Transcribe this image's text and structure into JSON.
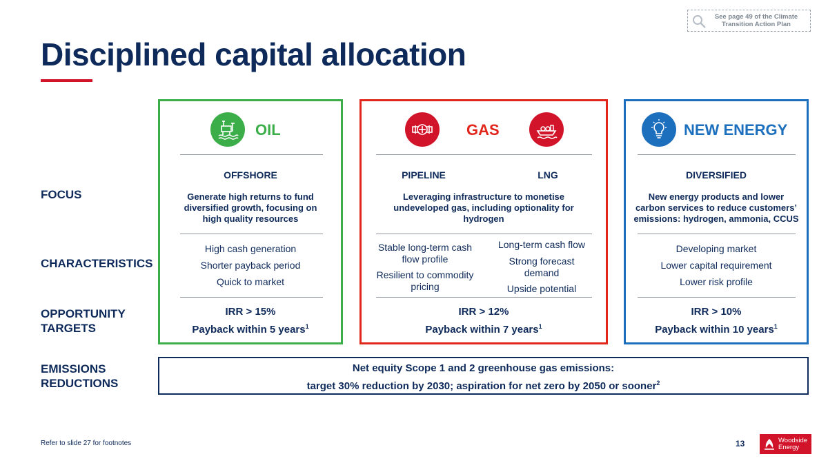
{
  "reference": {
    "text": "See page 49 of the Climate Transition Action Plan"
  },
  "title": "Disciplined capital allocation",
  "row_labels": {
    "focus": "FOCUS",
    "characteristics": "CHARACTERISTICS",
    "opportunity_line1": "OPPORTUNITY",
    "opportunity_line2": "TARGETS",
    "emissions_line1": "EMISSIONS",
    "emissions_line2": "REDUCTIONS"
  },
  "oil": {
    "heading": "OIL",
    "subheading": "OFFSHORE",
    "focus": "Generate high returns to fund diversified growth, focusing on high quality resources",
    "characteristics": [
      "High cash generation",
      "Shorter payback period",
      "Quick to market"
    ],
    "irr": "IRR > 15%",
    "payback": "Payback within 5 years",
    "payback_note": "1"
  },
  "gas": {
    "heading": "GAS",
    "sub_pipeline": "PIPELINE",
    "sub_lng": "LNG",
    "focus": "Leveraging infrastructure to monetise undeveloped gas, including optionality for hydrogen",
    "pipeline_characteristics": [
      "Stable long-term cash flow profile",
      "Resilient to commodity pricing"
    ],
    "lng_characteristics": [
      "Long-term cash flow",
      "Strong forecast demand",
      "Upside potential"
    ],
    "irr": "IRR > 12%",
    "payback": "Payback within 7 years",
    "payback_note": "1"
  },
  "new_energy": {
    "heading": "NEW ENERGY",
    "subheading": "DIVERSIFIED",
    "focus": "New energy products and lower carbon services to reduce customers’ emissions: hydrogen, ammonia, CCUS",
    "characteristics": [
      "Developing market",
      "Lower capital requirement",
      "Lower risk profile"
    ],
    "irr": "IRR > 10%",
    "payback": "Payback within 10 years",
    "payback_note": "1"
  },
  "emissions": {
    "line1": "Net equity Scope 1 and 2 greenhouse gas emissions:",
    "line2": "target 30% reduction by 2030; aspiration for net zero by 2050 or sooner",
    "line2_note": "2"
  },
  "footer": {
    "footnote": "Refer to slide 27 for footnotes",
    "page_number": "13",
    "logo_line1": "Woodside",
    "logo_line2": "Energy"
  },
  "colors": {
    "navy": "#0e2a5a",
    "oil_green": "#3cae49",
    "gas_red": "#e1261c",
    "new_energy_blue": "#1c6fbd",
    "accent_red": "#d2142a"
  },
  "icons": {
    "reference": "magnifier-icon",
    "oil": "offshore-platform-icon",
    "pipeline": "pipeline-valve-icon",
    "lng": "lng-ship-icon",
    "new_energy": "lightbulb-icon"
  }
}
